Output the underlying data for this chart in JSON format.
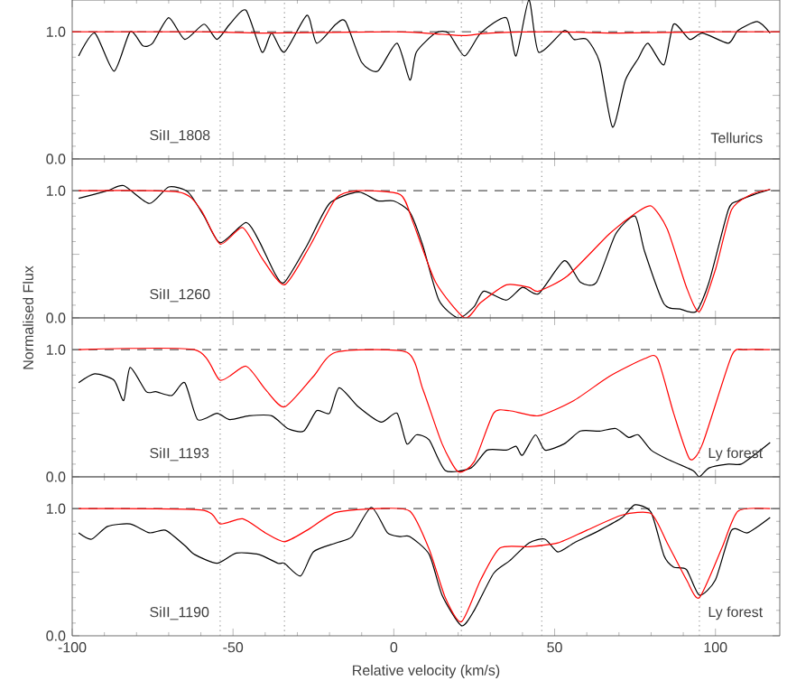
{
  "chart_data": [
    {
      "type": "line",
      "xlim": [
        -100,
        120
      ],
      "xticks": [
        -100,
        -50,
        0,
        50,
        100
      ],
      "ylim": [
        0,
        1.25
      ],
      "tick_labels": "y",
      "yticks": [
        {
          "value": 0,
          "label": "0.0"
        },
        {
          "value": 0.5,
          "label": null
        },
        {
          "value": 1,
          "label": "1.0"
        }
      ],
      "annotations": [
        "SiII_1808",
        "Tellurics"
      ],
      "ref_lines": [
        {
          "axis": "y",
          "value": 1,
          "color": "#555555",
          "line_style": "dashed"
        },
        {
          "axis": "x",
          "value": -54,
          "color": "#909090",
          "line_style": "dotted"
        },
        {
          "axis": "x",
          "value": -34,
          "color": "#909090",
          "line_style": "dotted"
        },
        {
          "axis": "x",
          "value": 21,
          "color": "#909090",
          "line_style": "dotted"
        },
        {
          "axis": "x",
          "value": 46,
          "color": "#909090",
          "line_style": "dotted"
        },
        {
          "axis": "x",
          "value": 95,
          "color": "#909090",
          "line_style": "dotted"
        }
      ],
      "series": [
        {
          "color": "#000000",
          "x": [
            -98,
            -93,
            -87,
            -82,
            -78,
            -75,
            -70,
            -65,
            -59,
            -55,
            -51,
            -46,
            -41,
            -38,
            -34,
            -27,
            -24,
            -18,
            -15,
            -10,
            -5,
            1,
            5,
            7,
            13,
            17,
            22,
            27,
            35,
            38,
            42,
            45,
            53,
            56,
            60,
            64,
            68,
            72,
            76,
            79,
            84,
            87,
            92,
            96,
            104,
            107,
            113,
            117
          ],
          "values": [
            0.81,
            0.99,
            0.69,
            1.0,
            0.89,
            0.91,
            1.11,
            0.94,
            1.06,
            0.94,
            1.06,
            1.17,
            0.84,
            0.99,
            0.84,
            1.13,
            0.91,
            1.06,
            1.08,
            0.76,
            0.69,
            0.91,
            0.62,
            0.84,
            0.99,
            0.99,
            0.81,
            0.99,
            1.11,
            0.81,
            1.25,
            0.84,
            1.01,
            0.94,
            0.94,
            0.76,
            0.25,
            0.62,
            0.79,
            0.91,
            0.74,
            1.06,
            0.94,
            0.99,
            0.91,
            1.01,
            1.08,
            0.99
          ]
        },
        {
          "color": "#ff0000",
          "x": [
            -100,
            -60,
            -40,
            0,
            15,
            22,
            30,
            50,
            70,
            100,
            120
          ],
          "values": [
            1.0,
            1.0,
            0.99,
            1.0,
            0.98,
            0.97,
            0.99,
            1.0,
            0.99,
            1.0,
            1.0
          ]
        }
      ]
    },
    {
      "type": "line",
      "xlim": [
        -100,
        120
      ],
      "xticks": [
        -100,
        -50,
        0,
        50,
        100
      ],
      "ylim": [
        0,
        1.25
      ],
      "tick_labels": "y",
      "ylabel": "Normalised Flux",
      "yticks": [
        {
          "value": 0,
          "label": "0.0"
        },
        {
          "value": 0.5,
          "label": null
        },
        {
          "value": 1,
          "label": "1.0"
        }
      ],
      "annotations": [
        "SiII_1260"
      ],
      "ref_lines": [
        {
          "axis": "y",
          "value": 1,
          "color": "#555555",
          "line_style": "dashed"
        },
        {
          "axis": "x",
          "value": -54,
          "color": "#909090",
          "line_style": "dotted"
        },
        {
          "axis": "x",
          "value": -34,
          "color": "#909090",
          "line_style": "dotted"
        },
        {
          "axis": "x",
          "value": 21,
          "color": "#909090",
          "line_style": "dotted"
        },
        {
          "axis": "x",
          "value": 46,
          "color": "#909090",
          "line_style": "dotted"
        },
        {
          "axis": "x",
          "value": 95,
          "color": "#909090",
          "line_style": "dotted"
        }
      ],
      "series": [
        {
          "color": "#000000",
          "x": [
            -98,
            -89,
            -84,
            -76,
            -70,
            -64,
            -59,
            -54,
            -46,
            -42,
            -37,
            -34,
            -27,
            -20,
            -11,
            -5,
            0,
            5,
            9,
            14,
            20,
            25,
            28,
            35,
            40,
            45,
            53,
            58,
            63,
            69,
            75,
            78,
            84,
            89,
            94,
            98,
            104,
            107,
            112,
            117
          ],
          "values": [
            0.94,
            1.0,
            1.04,
            0.9,
            1.03,
            0.99,
            0.8,
            0.59,
            0.75,
            0.61,
            0.35,
            0.28,
            0.57,
            0.9,
            0.99,
            0.92,
            0.92,
            0.83,
            0.57,
            0.14,
            0.0,
            0.09,
            0.21,
            0.14,
            0.24,
            0.19,
            0.45,
            0.28,
            0.28,
            0.66,
            0.8,
            0.52,
            0.11,
            0.07,
            0.05,
            0.28,
            0.85,
            0.92,
            0.97,
            1.01
          ]
        },
        {
          "color": "#ff0000",
          "x": [
            -98,
            -67,
            -60,
            -54,
            -47,
            -41,
            -34,
            -26,
            -18,
            -11,
            2,
            6,
            13,
            22,
            27,
            35,
            42,
            45,
            54,
            67,
            75,
            80,
            85,
            91,
            95,
            100,
            105,
            111,
            117
          ],
          "values": [
            1.0,
            0.99,
            0.85,
            0.58,
            0.71,
            0.47,
            0.26,
            0.57,
            0.94,
            1.0,
            0.97,
            0.75,
            0.28,
            0.0,
            0.12,
            0.26,
            0.24,
            0.21,
            0.33,
            0.66,
            0.82,
            0.88,
            0.7,
            0.24,
            0.05,
            0.38,
            0.85,
            0.97,
            1.01
          ]
        }
      ]
    },
    {
      "type": "line",
      "xlim": [
        -100,
        120
      ],
      "xticks": [
        -100,
        -50,
        0,
        50,
        100
      ],
      "ylim": [
        0,
        1.25
      ],
      "tick_labels": "y",
      "yticks": [
        {
          "value": 0,
          "label": "0.0"
        },
        {
          "value": 0.5,
          "label": null
        },
        {
          "value": 1,
          "label": "1.0"
        }
      ],
      "annotations": [
        "SiII_1193",
        "Ly forest"
      ],
      "ref_lines": [
        {
          "axis": "y",
          "value": 1,
          "color": "#555555",
          "line_style": "dashed"
        },
        {
          "axis": "x",
          "value": -54,
          "color": "#909090",
          "line_style": "dotted"
        },
        {
          "axis": "x",
          "value": -34,
          "color": "#909090",
          "line_style": "dotted"
        },
        {
          "axis": "x",
          "value": 21,
          "color": "#909090",
          "line_style": "dotted"
        },
        {
          "axis": "x",
          "value": 46,
          "color": "#909090",
          "line_style": "dotted"
        },
        {
          "axis": "x",
          "value": 95,
          "color": "#909090",
          "line_style": "dotted"
        }
      ],
      "series": [
        {
          "color": "#000000",
          "x": [
            -98,
            -93,
            -87,
            -84,
            -82,
            -77,
            -74,
            -69,
            -65,
            -61,
            -55,
            -51,
            -45,
            -38,
            -33,
            -28,
            -24,
            -20,
            -17,
            -11,
            -4,
            1,
            4,
            7,
            11,
            16,
            24,
            29,
            35,
            38,
            40,
            44,
            47,
            53,
            58,
            64,
            69,
            73,
            76,
            80,
            85,
            93,
            95,
            98,
            104,
            108,
            113,
            117
          ],
          "values": [
            0.74,
            0.81,
            0.76,
            0.6,
            0.86,
            0.67,
            0.67,
            0.64,
            0.74,
            0.45,
            0.5,
            0.45,
            0.48,
            0.48,
            0.38,
            0.36,
            0.52,
            0.5,
            0.7,
            0.55,
            0.43,
            0.5,
            0.26,
            0.33,
            0.29,
            0.05,
            0.07,
            0.21,
            0.21,
            0.24,
            0.17,
            0.33,
            0.21,
            0.26,
            0.36,
            0.36,
            0.38,
            0.31,
            0.33,
            0.21,
            0.14,
            0.05,
            0.0,
            0.07,
            0.1,
            0.1,
            0.19,
            0.27
          ]
        },
        {
          "color": "#ff0000",
          "x": [
            -98,
            -62,
            -54,
            -46,
            -40,
            -34,
            -25,
            -18,
            4,
            9,
            15,
            20,
            25,
            31,
            36,
            45,
            56,
            67,
            78,
            82,
            87,
            92,
            96,
            105,
            109,
            117
          ],
          "values": [
            1.0,
            1.0,
            0.76,
            0.87,
            0.69,
            0.55,
            0.79,
            0.98,
            0.98,
            0.69,
            0.26,
            0.04,
            0.12,
            0.5,
            0.52,
            0.48,
            0.6,
            0.79,
            0.93,
            0.93,
            0.5,
            0.14,
            0.26,
            0.95,
            1.0,
            1.0
          ]
        }
      ]
    },
    {
      "type": "line",
      "xlim": [
        -100,
        120
      ],
      "xticks": [
        -100,
        -50,
        0,
        50,
        100
      ],
      "ylim": [
        0,
        1.25
      ],
      "xlabel": "Relative velocity (km/s)",
      "yticks": [
        {
          "value": 0,
          "label": "0.0"
        },
        {
          "value": 0.5,
          "label": null
        },
        {
          "value": 1,
          "label": "1.0"
        }
      ],
      "annotations": [
        "SiII_1190",
        "Ly forest"
      ],
      "ref_lines": [
        {
          "axis": "y",
          "value": 1,
          "color": "#555555",
          "line_style": "dashed"
        },
        {
          "axis": "x",
          "value": -54,
          "color": "#909090",
          "line_style": "dotted"
        },
        {
          "axis": "x",
          "value": -34,
          "color": "#909090",
          "line_style": "dotted"
        },
        {
          "axis": "x",
          "value": 21,
          "color": "#909090",
          "line_style": "dotted"
        },
        {
          "axis": "x",
          "value": 46,
          "color": "#909090",
          "line_style": "dotted"
        },
        {
          "axis": "x",
          "value": 95,
          "color": "#909090",
          "line_style": "dotted"
        }
      ],
      "series": [
        {
          "color": "#000000",
          "x": [
            -98,
            -94,
            -89,
            -82,
            -76,
            -71,
            -65,
            -62,
            -55,
            -49,
            -42,
            -36,
            -34,
            -29,
            -25,
            -18,
            -13,
            -7,
            -2,
            2,
            5,
            11,
            15,
            21,
            25,
            31,
            36,
            42,
            47,
            51,
            56,
            64,
            71,
            75,
            80,
            84,
            87,
            91,
            95,
            100,
            105,
            110,
            117
          ],
          "values": [
            0.81,
            0.76,
            0.86,
            0.88,
            0.81,
            0.83,
            0.71,
            0.64,
            0.57,
            0.65,
            0.64,
            0.57,
            0.57,
            0.47,
            0.66,
            0.73,
            0.78,
            1.01,
            0.81,
            0.78,
            0.78,
            0.64,
            0.32,
            0.08,
            0.2,
            0.49,
            0.59,
            0.73,
            0.76,
            0.66,
            0.73,
            0.83,
            0.93,
            1.03,
            0.97,
            0.63,
            0.54,
            0.52,
            0.32,
            0.44,
            0.83,
            0.81,
            0.93
          ]
        },
        {
          "color": "#ff0000",
          "x": [
            -98,
            -60,
            -54,
            -47,
            -40,
            -34,
            -27,
            -18,
            -5,
            5,
            11,
            16,
            21,
            27,
            33,
            42,
            51,
            60,
            71,
            80,
            85,
            91,
            95,
            102,
            107,
            117
          ],
          "values": [
            1.0,
            0.99,
            0.88,
            0.92,
            0.81,
            0.74,
            0.83,
            0.97,
            1.0,
            0.98,
            0.68,
            0.3,
            0.11,
            0.44,
            0.69,
            0.7,
            0.73,
            0.83,
            0.95,
            0.96,
            0.73,
            0.44,
            0.3,
            0.69,
            0.98,
            1.0
          ]
        }
      ]
    }
  ]
}
